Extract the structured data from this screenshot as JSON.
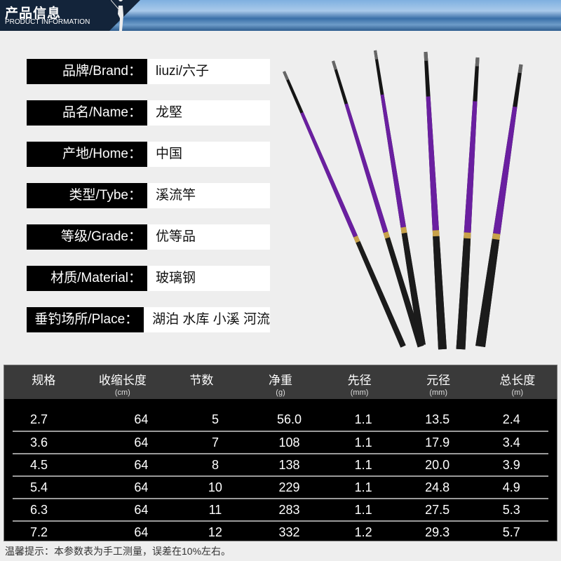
{
  "banner": {
    "title": "产品信息",
    "subtitle": "PRODUCT INFORMATION"
  },
  "specs": [
    {
      "label": "品牌/Brand：",
      "value": "liuzi/六子"
    },
    {
      "label": "品名/Name：",
      "value": "龙堅"
    },
    {
      "label": "产地/Home：",
      "value": "中国"
    },
    {
      "label": "类型/Tybe：",
      "value": "溪流竿"
    },
    {
      "label": "等级/Grade：",
      "value": "优等品"
    },
    {
      "label": "材质/Material：",
      "value": "玻璃钢"
    },
    {
      "label": "垂钓场所/Place：",
      "value": "湖泊 水库 小溪 河流"
    }
  ],
  "table": {
    "headers": [
      {
        "title": "规格",
        "unit": ""
      },
      {
        "title": "收缩长度",
        "unit": "(cm)"
      },
      {
        "title": "节数",
        "unit": ""
      },
      {
        "title": "净重",
        "unit": "(g)"
      },
      {
        "title": "先径",
        "unit": "(mm)"
      },
      {
        "title": "元径",
        "unit": "(mm)"
      },
      {
        "title": "总长度",
        "unit": "(m)"
      }
    ],
    "rows": [
      [
        "2.7",
        "64",
        "5",
        "56.0",
        "1.1",
        "13.5",
        "2.4"
      ],
      [
        "3.6",
        "64",
        "7",
        "108",
        "1.1",
        "17.9",
        "3.4"
      ],
      [
        "4.5",
        "64",
        "8",
        "138",
        "1.1",
        "20.0",
        "3.9"
      ],
      [
        "5.4",
        "64",
        "10",
        "229",
        "1.1",
        "24.8",
        "4.9"
      ],
      [
        "6.3",
        "64",
        "11",
        "283",
        "1.1",
        "27.5",
        "5.3"
      ],
      [
        "7.2",
        "64",
        "12",
        "332",
        "1.2",
        "29.3",
        "5.7"
      ]
    ]
  },
  "note": "温馨提示：本参数表为手工测量，误差在10%左右。",
  "colors": {
    "rod_accent": "#6a1fa0",
    "header_bg": "#3a3a3a",
    "table_bg": "#000000"
  }
}
